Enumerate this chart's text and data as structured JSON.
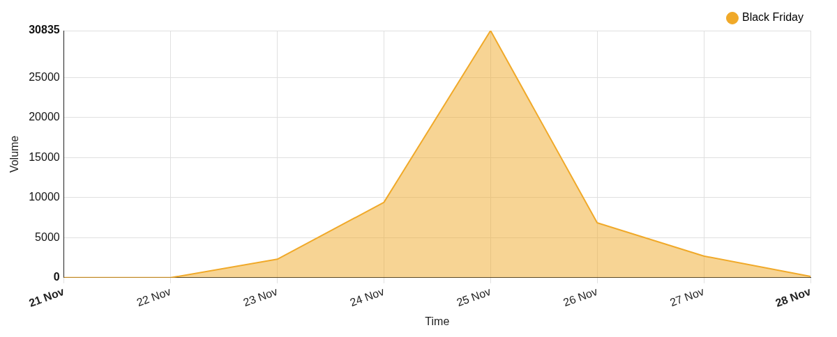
{
  "chart_data": {
    "type": "area",
    "xlabel": "Time",
    "ylabel": "Volume",
    "categories": [
      "21 Nov",
      "22 Nov",
      "23 Nov",
      "24 Nov",
      "25 Nov",
      "26 Nov",
      "27 Nov",
      "28 Nov"
    ],
    "series": [
      {
        "name": "Black Friday",
        "color": "#f0a929",
        "values": [
          0,
          0,
          2300,
          9400,
          30835,
          6850,
          2700,
          150
        ]
      }
    ],
    "ylim": [
      0,
      30835
    ],
    "yticks": [
      0,
      5000,
      10000,
      15000,
      20000,
      25000,
      30835
    ],
    "grid": true,
    "legend": "top right",
    "marker": "none",
    "line_style": "solid"
  }
}
